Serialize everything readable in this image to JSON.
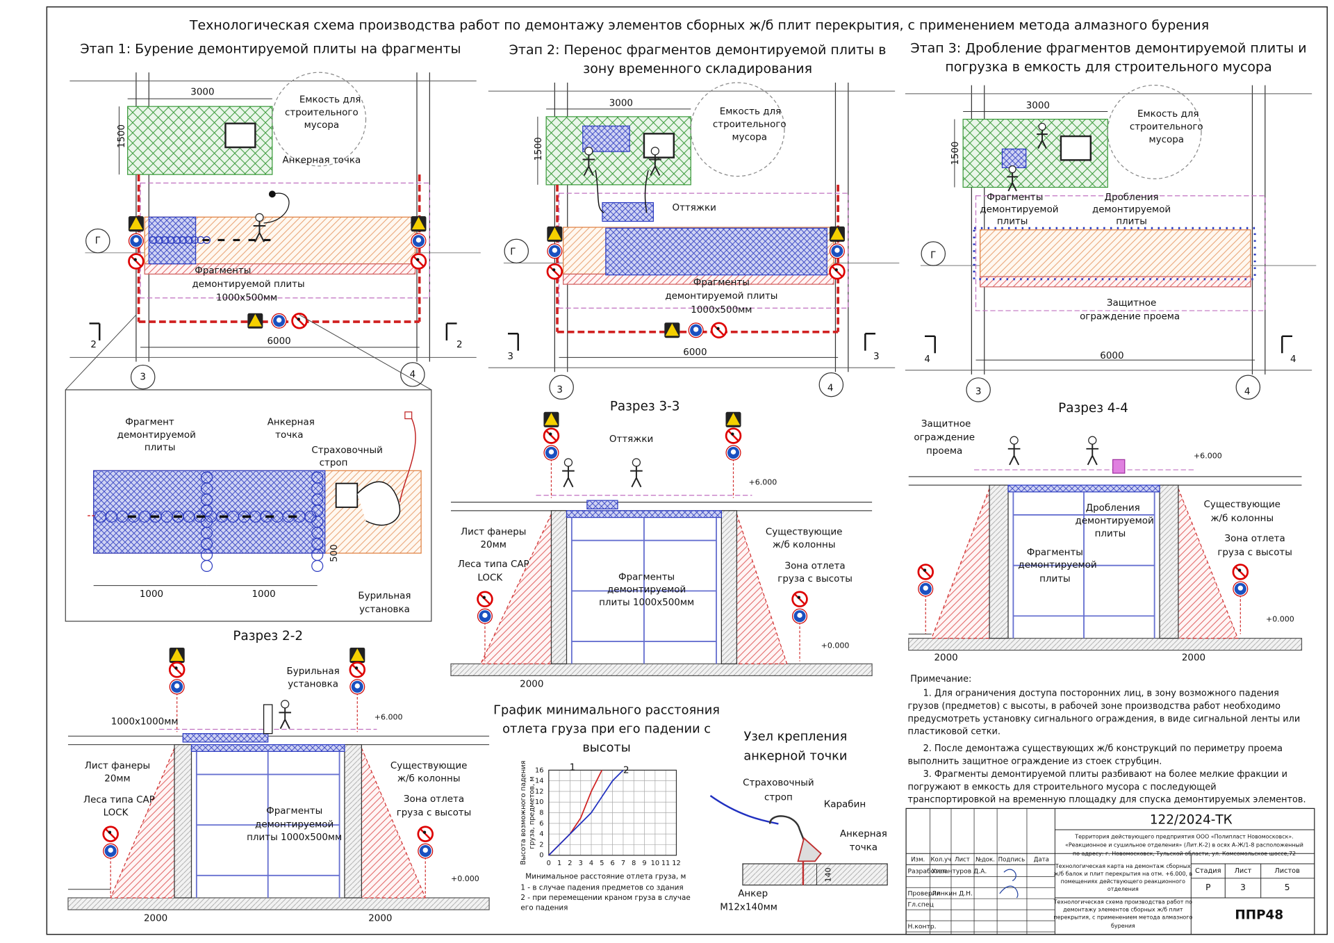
{
  "title": "Технологическая схема производства работ по демонтажу элементов сборных ж/б  плит перекрытия, с применением метода алмазного бурения",
  "stage1": {
    "title": "Этап 1: Бурение демонтируемой плиты на фрагменты",
    "labels": [
      "3000",
      "1500",
      "Емкость для",
      "строительного",
      "мусора",
      "Анкерная точка",
      "Г",
      "Фрагменты",
      "демонтируемой плиты",
      "1000х500мм",
      "6000",
      "2",
      "2",
      "3",
      "4"
    ]
  },
  "stage2": {
    "title": [
      "Этап 2: Перенос фрагментов демонтируемой плиты в",
      "зону временного складирования"
    ],
    "labels": [
      "3000",
      "1500",
      "Емкость для",
      "строительного",
      "мусора",
      "Оттяжки",
      "Г",
      "Фрагменты",
      "демонтируемой плиты",
      "1000х500мм",
      "6000",
      "3",
      "3",
      "3",
      "4"
    ]
  },
  "stage3": {
    "title": [
      "Этап 3: Дробление фрагментов демонтируемой плиты и",
      "погрузка в емкость для строительного мусора"
    ],
    "labels": [
      "3000",
      "1500",
      "Емкость для",
      "строительного",
      "мусора",
      "Фрагменты",
      "демонтируемой",
      "плиты",
      "Дробления",
      "демонтируемой",
      "плиты",
      "Г",
      "Защитное",
      "ограждение проема",
      "6000",
      "4",
      "4",
      "3",
      "4"
    ]
  },
  "detail": {
    "labels": [
      "Фрагмент",
      "демонтируемой",
      "плиты",
      "Анкерная",
      "точка",
      "Страховочный",
      "строп",
      "500",
      "1000",
      "1000",
      "Бурильная",
      "установка"
    ]
  },
  "section_2_2": {
    "title": "Разрез 2-2",
    "labels": [
      "Бурильная",
      "установка",
      "1000х1000мм",
      "+6.000",
      "Лист фанеры",
      "20мм",
      "Леса типа САР",
      "LOCK",
      "Фрагменты",
      "демонтируемой",
      "плиты 1000х500мм",
      "Существующие",
      "ж/б колонны",
      "Зона отлета",
      "груза с высоты",
      "+0.000",
      "2000",
      "2000"
    ]
  },
  "section_3_3": {
    "title": "Разрез 3-3",
    "labels": [
      "Оттяжки",
      "+6.000",
      "Лист фанеры",
      "20мм",
      "Леса типа САР",
      "LOCK",
      "Фрагменты",
      "демонтируемой",
      "плиты 1000х500мм",
      "Существующие",
      "ж/б колонны",
      "Зона отлета",
      "груза с высоты",
      "+0.000",
      "2000"
    ]
  },
  "section_4_4": {
    "title": "Разрез 4-4",
    "labels": [
      "Защитное",
      "ограждение",
      "проема",
      "+6.000",
      "Дробления",
      "демонтируемой",
      "плиты",
      "Существующие",
      "ж/б колонны",
      "Зона отлета",
      "груза с высоты",
      "Фрагменты",
      "демонтируемой",
      "плиты",
      "+0.000",
      "2000",
      "2000"
    ]
  },
  "graph": {
    "title": [
      "График минимального расстояния",
      "отлета груза при его падении с",
      "высоты"
    ],
    "ylabel": [
      "Высота возможного падения",
      "груза, предметов, м"
    ],
    "xlabel": "Минимальное расстояние отлета груза, м",
    "notes": [
      "1 - в случае падения предметов со здания",
      "2 - при перемещении краном груза в случае",
      "его падения"
    ],
    "xlim": [
      0,
      12
    ],
    "ylim": [
      0,
      16
    ],
    "xticks": [
      0,
      1,
      2,
      3,
      4,
      5,
      6,
      7,
      8,
      9,
      10,
      11,
      12
    ],
    "yticks": [
      0,
      2,
      4,
      6,
      8,
      10,
      12,
      14,
      16
    ],
    "series": [
      {
        "name": "1",
        "color": "#d02020",
        "x": [
          0,
          2,
          3,
          4,
          4.5,
          5
        ],
        "y": [
          0,
          4,
          7,
          12,
          14,
          16
        ]
      },
      {
        "name": "2",
        "color": "#2030c0",
        "x": [
          0,
          2,
          4,
          5,
          6,
          7
        ],
        "y": [
          0,
          4,
          8,
          11,
          14,
          16
        ]
      }
    ]
  },
  "anchor_node": {
    "labels": [
      "Узел крепления",
      "анкерной точки",
      "Страховочный",
      "строп",
      "Карабин",
      "Анкерная",
      "точка",
      "140",
      "Анкер",
      "М12х140мм"
    ]
  },
  "notes": {
    "lines": [
      "Примечание:",
      "1. Для ограничения доступа посторонних лиц, в зону возможного падения",
      "грузов (предметов) с высоты, в рабочей зоне производства работ необходимо",
      "предусмотреть установку сигнального ограждения, в виде сигнальной ленты или",
      "пластиковой сетки.",
      "2. После демонтажа существующих ж/б конструкций по периметру проема",
      "выполнить защитное ограждение из стоек струбцин.",
      "3. Фрагменты демонтируемой плиты разбивают на более мелкие фракции и",
      "погружают в емкость для строительного мусора с последующей",
      "транспортировкой на временную площадку для спуска демонтируемых элементов."
    ]
  },
  "stamp": {
    "code": "122/2024-ТК",
    "organization": [
      "Территория действующего предприятия ООО «Полипласт Новомосковск».",
      "«Реакционное и сушильное отделения» (Лит.К-2) в осях А-Ж/1-8 расположенный",
      "по адресу: г. Новомосковск, Тульской области, ул. Комсомольское шоссе,72"
    ],
    "headers": [
      "Изм.",
      "Кол.уч",
      "Лист",
      "№док.",
      "Подпись",
      "Дата"
    ],
    "rows": [
      [
        "Разработал",
        "Хилантуров Д.А."
      ],
      [
        "Проверил",
        "Линкин Д.Н."
      ],
      [
        "Гл.спец"
      ],
      [
        "Н.контр."
      ]
    ],
    "description": [
      "Технологическая карта на демонтаж сборных",
      "ж/б балок и плит перекрытия на отм. +6.000, в",
      "помещениях действующего реакционного",
      "отделения"
    ],
    "scheme": [
      "Технологическая схема производства работ по",
      "демонтажу элементов сборных ж/б плит",
      "перекрытия, с применением метода алмазного",
      "бурения"
    ],
    "stage_headers": [
      "Стадия",
      "Лист",
      "Листов"
    ],
    "stage_values": [
      "Р",
      "3",
      "5"
    ],
    "logo": "ППР48"
  }
}
